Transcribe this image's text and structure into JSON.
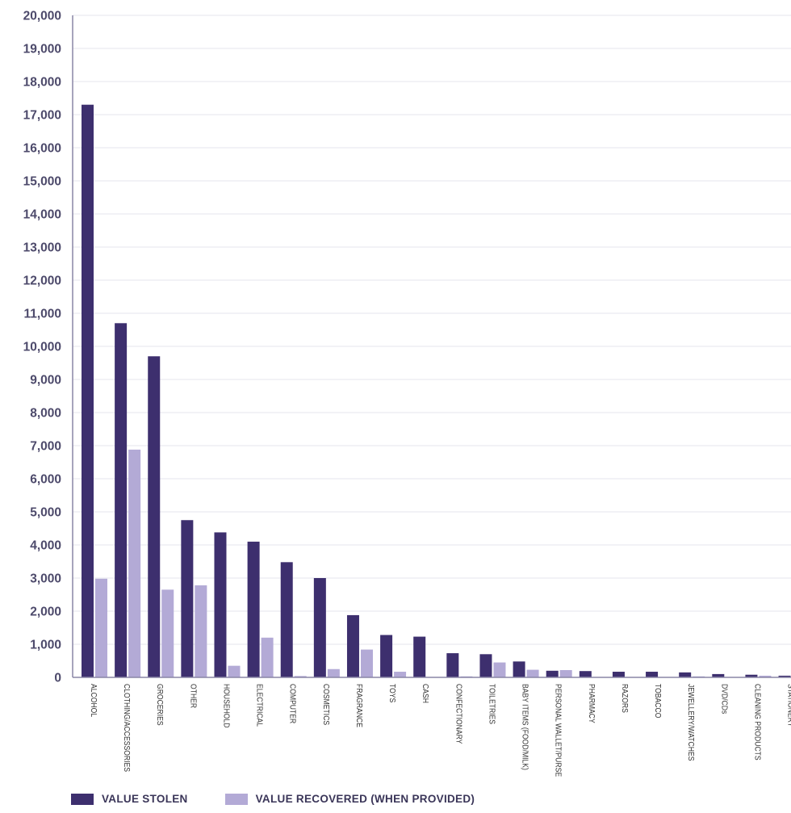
{
  "colors": {
    "stolen": "#3d2f6e",
    "recovered": "#b3aad6",
    "grid": "#e6e6ee",
    "axis": "#8a86a6"
  },
  "chart_data": {
    "type": "bar",
    "ylim": [
      0,
      20000
    ],
    "yticks": [
      "0",
      "1,000",
      "2,000",
      "3,000",
      "4,000",
      "5,000",
      "6,000",
      "7,000",
      "8,000",
      "9,000",
      "10,000",
      "11,000",
      "12,000",
      "13,000",
      "14,000",
      "15,000",
      "16,000",
      "17,000",
      "18,000",
      "19,000",
      "20,000"
    ],
    "grid": true,
    "legend_position": "bottom",
    "categories": [
      "ALCOHOL",
      "CLOTHING/ACCESSORIES",
      "GROCERIES",
      "OTHER",
      "HOUSEHOLD",
      "ELECTRICAL",
      "COMPUTER",
      "COSMETICS",
      "FRAGRANCE",
      "TOYS",
      "CASH",
      "CONFECTIONARY",
      "TOILETRIES",
      "BABY ITEMS (FOOD/MILK)",
      "PERSONAL WALLET/PURSE",
      "PHARMACY",
      "RAZORS",
      "TOBACCO",
      "JEWELLERY/WATCHES",
      "DVD/CDs",
      "CLEANING PRODUCTS",
      "STATIONERY"
    ],
    "series": [
      {
        "name": "VALUE STOLEN",
        "values": [
          17300,
          10700,
          9700,
          4750,
          4380,
          4100,
          3480,
          3000,
          1880,
          1280,
          1230,
          730,
          700,
          480,
          200,
          190,
          170,
          170,
          150,
          100,
          80,
          50
        ]
      },
      {
        "name": "VALUE RECOVERED (WHEN PROVIDED)",
        "values": [
          2980,
          6880,
          2650,
          2780,
          350,
          1200,
          40,
          250,
          840,
          170,
          0,
          30,
          450,
          230,
          220,
          0,
          0,
          0,
          30,
          0,
          50,
          40
        ]
      }
    ]
  }
}
